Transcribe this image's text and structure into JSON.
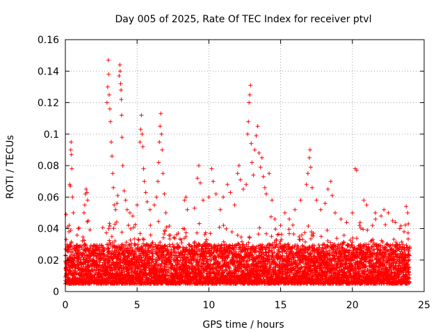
{
  "chart_data": {
    "type": "scatter",
    "title": "Day 005 of 2025, Rate Of TEC Index for receiver ptvl",
    "xlabel": "GPS time / hours",
    "ylabel": "ROTI / TECUs",
    "xlim": [
      0,
      25
    ],
    "ylim": [
      0,
      0.16
    ],
    "xticks": [
      0,
      5,
      10,
      15,
      20,
      25
    ],
    "yticks": [
      0,
      0.02,
      0.04,
      0.06,
      0.08,
      0.1,
      0.12,
      0.14,
      0.16
    ],
    "grid": true,
    "marker": "+",
    "marker_color": "#ff0000",
    "data_range_hours": [
      0,
      24
    ],
    "baseline_range": [
      0.005,
      0.03
    ],
    "series": [
      {
        "name": "ROTI",
        "points": [
          [
            0.05,
            0.049
          ],
          [
            0.15,
            0.041
          ],
          [
            0.25,
            0.038
          ],
          [
            0.3,
            0.068
          ],
          [
            0.35,
            0.067
          ],
          [
            0.38,
            0.09
          ],
          [
            0.4,
            0.095
          ],
          [
            0.42,
            0.087
          ],
          [
            0.45,
            0.078
          ],
          [
            0.5,
            0.06
          ],
          [
            0.55,
            0.05
          ],
          [
            1.3,
            0.05
          ],
          [
            1.35,
            0.055
          ],
          [
            1.4,
            0.062
          ],
          [
            1.45,
            0.065
          ],
          [
            1.5,
            0.063
          ],
          [
            1.55,
            0.058
          ],
          [
            1.6,
            0.045
          ],
          [
            2.9,
            0.12
          ],
          [
            2.95,
            0.13
          ],
          [
            3.0,
            0.147
          ],
          [
            3.02,
            0.138
          ],
          [
            3.05,
            0.125
          ],
          [
            3.1,
            0.116
          ],
          [
            3.15,
            0.108
          ],
          [
            3.2,
            0.095
          ],
          [
            3.25,
            0.086
          ],
          [
            3.3,
            0.075
          ],
          [
            3.35,
            0.066
          ],
          [
            3.4,
            0.055
          ],
          [
            3.5,
            0.052
          ],
          [
            3.6,
            0.056
          ],
          [
            3.65,
            0.061
          ],
          [
            3.75,
            0.137
          ],
          [
            3.8,
            0.144
          ],
          [
            3.82,
            0.14
          ],
          [
            3.85,
            0.132
          ],
          [
            3.88,
            0.128
          ],
          [
            3.9,
            0.122
          ],
          [
            3.92,
            0.112
          ],
          [
            3.95,
            0.098
          ],
          [
            4.0,
            0.08
          ],
          [
            4.1,
            0.064
          ],
          [
            4.2,
            0.058
          ],
          [
            4.3,
            0.052
          ],
          [
            4.5,
            0.05
          ],
          [
            4.7,
            0.048
          ],
          [
            5.0,
            0.055
          ],
          [
            5.2,
            0.095
          ],
          [
            5.25,
            0.103
          ],
          [
            5.3,
            0.112
          ],
          [
            5.35,
            0.1
          ],
          [
            5.4,
            0.092
          ],
          [
            5.45,
            0.078
          ],
          [
            5.5,
            0.07
          ],
          [
            5.6,
            0.063
          ],
          [
            5.7,
            0.057
          ],
          [
            5.9,
            0.052
          ],
          [
            6.2,
            0.055
          ],
          [
            6.35,
            0.06
          ],
          [
            6.45,
            0.07
          ],
          [
            6.5,
            0.082
          ],
          [
            6.55,
            0.095
          ],
          [
            6.6,
            0.105
          ],
          [
            6.65,
            0.113
          ],
          [
            6.7,
            0.1
          ],
          [
            6.75,
            0.09
          ],
          [
            6.8,
            0.075
          ],
          [
            6.9,
            0.062
          ],
          [
            7.0,
            0.05
          ],
          [
            8.2,
            0.04
          ],
          [
            8.3,
            0.058
          ],
          [
            8.4,
            0.06
          ],
          [
            8.5,
            0.052
          ],
          [
            9.0,
            0.053
          ],
          [
            9.2,
            0.072
          ],
          [
            9.3,
            0.08
          ],
          [
            9.4,
            0.069
          ],
          [
            9.6,
            0.058
          ],
          [
            10.0,
            0.06
          ],
          [
            10.2,
            0.078
          ],
          [
            10.3,
            0.07
          ],
          [
            10.5,
            0.062
          ],
          [
            10.8,
            0.052
          ],
          [
            11.0,
            0.06
          ],
          [
            11.3,
            0.068
          ],
          [
            11.5,
            0.063
          ],
          [
            11.8,
            0.055
          ],
          [
            12.0,
            0.075
          ],
          [
            12.1,
            0.08
          ],
          [
            12.2,
            0.071
          ],
          [
            12.4,
            0.065
          ],
          [
            12.6,
            0.068
          ],
          [
            12.7,
            0.1
          ],
          [
            12.75,
            0.108
          ],
          [
            12.8,
            0.12
          ],
          [
            12.85,
            0.125
          ],
          [
            12.9,
            0.131
          ],
          [
            12.95,
            0.094
          ],
          [
            13.0,
            0.082
          ],
          [
            13.1,
            0.074
          ],
          [
            13.2,
            0.09
          ],
          [
            13.3,
            0.099
          ],
          [
            13.4,
            0.105
          ],
          [
            13.5,
            0.088
          ],
          [
            13.6,
            0.079
          ],
          [
            13.7,
            0.085
          ],
          [
            13.8,
            0.073
          ],
          [
            13.9,
            0.066
          ],
          [
            14.0,
            0.062
          ],
          [
            14.2,
            0.075
          ],
          [
            14.4,
            0.058
          ],
          [
            14.6,
            0.046
          ],
          [
            15.0,
            0.042
          ],
          [
            15.3,
            0.05
          ],
          [
            15.6,
            0.046
          ],
          [
            16.0,
            0.052
          ],
          [
            16.4,
            0.058
          ],
          [
            16.8,
            0.068
          ],
          [
            16.9,
            0.075
          ],
          [
            17.0,
            0.085
          ],
          [
            17.05,
            0.09
          ],
          [
            17.1,
            0.079
          ],
          [
            17.2,
            0.066
          ],
          [
            17.5,
            0.058
          ],
          [
            17.8,
            0.052
          ],
          [
            18.1,
            0.056
          ],
          [
            18.3,
            0.065
          ],
          [
            18.5,
            0.07
          ],
          [
            18.6,
            0.061
          ],
          [
            18.8,
            0.05
          ],
          [
            19.2,
            0.046
          ],
          [
            19.6,
            0.044
          ],
          [
            20.0,
            0.05
          ],
          [
            20.2,
            0.078
          ],
          [
            20.3,
            0.077
          ],
          [
            20.5,
            0.042
          ],
          [
            20.8,
            0.058
          ],
          [
            21.0,
            0.055
          ],
          [
            21.4,
            0.042
          ],
          [
            21.6,
            0.05
          ],
          [
            22.0,
            0.048
          ],
          [
            22.2,
            0.052
          ],
          [
            22.5,
            0.05
          ],
          [
            22.8,
            0.045
          ],
          [
            23.0,
            0.044
          ],
          [
            23.3,
            0.04
          ],
          [
            23.6,
            0.038
          ],
          [
            23.75,
            0.054
          ],
          [
            23.85,
            0.05
          ],
          [
            23.9,
            0.043
          ]
        ]
      }
    ]
  }
}
